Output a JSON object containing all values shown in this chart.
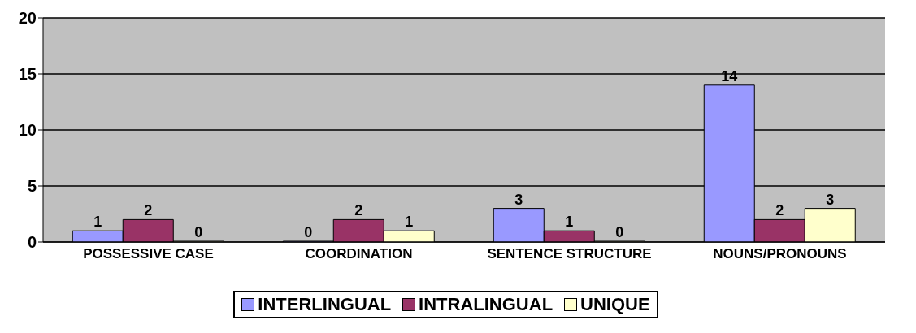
{
  "chart_data": {
    "type": "bar",
    "categories": [
      "POSSESSIVE CASE",
      "COORDINATION",
      "SENTENCE STRUCTURE",
      "NOUNS/PRONOUNS"
    ],
    "series": [
      {
        "name": "INTERLINGUAL",
        "color": "#9999ff",
        "values": [
          1,
          0,
          3,
          14
        ]
      },
      {
        "name": "INTRALINGUAL",
        "color": "#993366",
        "values": [
          2,
          2,
          1,
          2
        ]
      },
      {
        "name": "UNIQUE",
        "color": "#ffffcc",
        "values": [
          0,
          1,
          0,
          3
        ]
      }
    ],
    "ylim": [
      0,
      20
    ],
    "yticks": [
      0,
      5,
      10,
      15,
      20
    ],
    "grid": "y",
    "legend": "bottom",
    "data_labels": true
  }
}
